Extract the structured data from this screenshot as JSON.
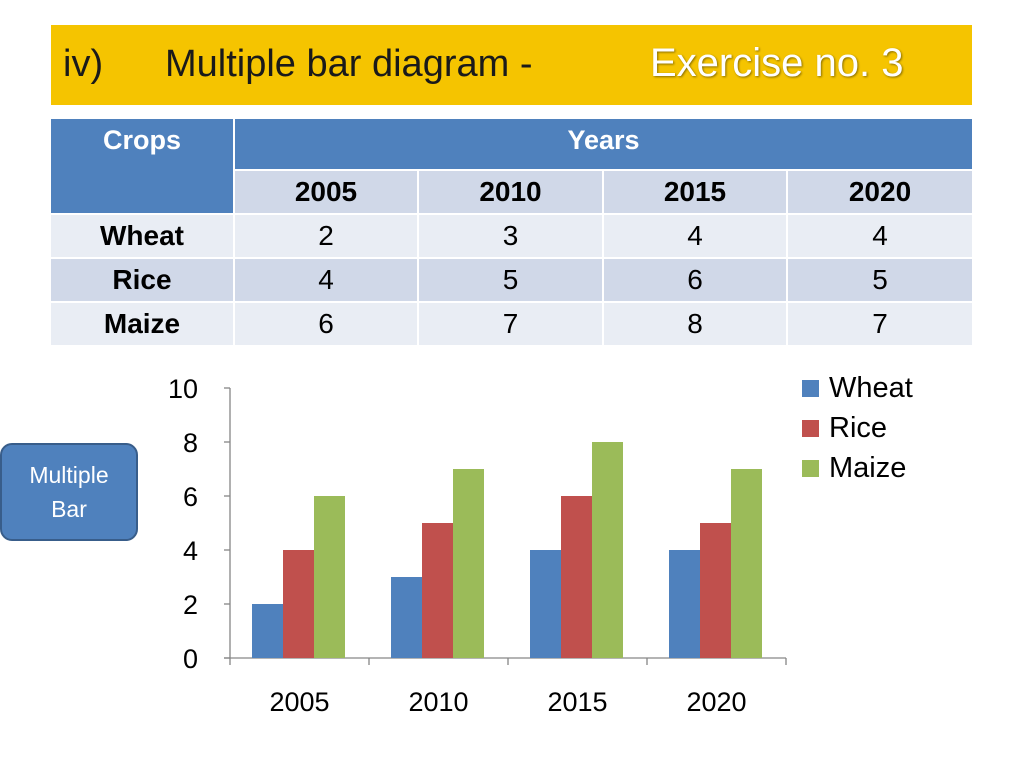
{
  "header": {
    "number": "iv)",
    "title": "Multiple bar diagram -",
    "exercise": "Exercise no. 3"
  },
  "table": {
    "crops_header": "Crops",
    "years_header": "Years",
    "years": [
      "2005",
      "2010",
      "2015",
      "2020"
    ],
    "rows": [
      {
        "crop": "Wheat",
        "values": [
          "2",
          "3",
          "4",
          "4"
        ]
      },
      {
        "crop": "Rice",
        "values": [
          "4",
          "5",
          "6",
          "5"
        ]
      },
      {
        "crop": "Maize",
        "values": [
          "6",
          "7",
          "8",
          "7"
        ]
      }
    ]
  },
  "side_button": {
    "line1": "Multiple",
    "line2": "Bar"
  },
  "chart_data": {
    "type": "bar",
    "categories": [
      "2005",
      "2010",
      "2015",
      "2020"
    ],
    "series": [
      {
        "name": "Wheat",
        "values": [
          2,
          3,
          4,
          4
        ],
        "color": "#4f81bd"
      },
      {
        "name": "Rice",
        "values": [
          4,
          5,
          6,
          5
        ],
        "color": "#c0504d"
      },
      {
        "name": "Maize",
        "values": [
          6,
          7,
          8,
          7
        ],
        "color": "#9bbb59"
      }
    ],
    "ylim": [
      0,
      10
    ],
    "yticks": [
      "0",
      "2",
      "4",
      "6",
      "8",
      "10"
    ],
    "grid": false,
    "legend": "top-right",
    "title": "",
    "xlabel": "",
    "ylabel": ""
  }
}
